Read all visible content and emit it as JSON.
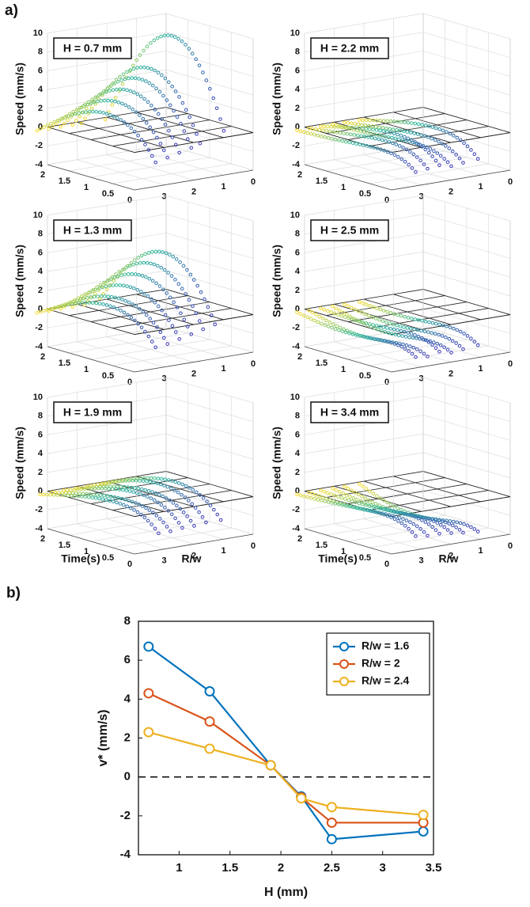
{
  "panel_a": {
    "label": "a)",
    "z_label": "Speed (mm/s)",
    "t_label": "Time(s)",
    "r_label": "R/w",
    "tlim": [
      0,
      2
    ],
    "rlim": [
      0,
      4
    ],
    "zlim": [
      -4,
      10
    ],
    "tticks": [
      2,
      1.5,
      1,
      0.5,
      0
    ],
    "rticks": [
      3,
      2,
      1,
      0
    ],
    "zticks": [
      10,
      8,
      6,
      4,
      2,
      0,
      -2,
      -4
    ],
    "colormap": [
      "#f7dc2a",
      "#2fb7a0",
      "#3a37b8"
    ],
    "plots": [
      {
        "title": "H = 0.7 mm",
        "traces": [
          {
            "end_r": 0.9,
            "peak": 10
          },
          {
            "end_r": 1.7,
            "peak": 7
          },
          {
            "end_r": 2.0,
            "peak": 6
          },
          {
            "end_r": 2.4,
            "peak": 5
          },
          {
            "end_r": 2.8,
            "peak": 4
          },
          {
            "end_r": 3.2,
            "peak": 3
          }
        ]
      },
      {
        "title": "H = 2.2 mm",
        "traces": [
          {
            "end_r": 1.0,
            "peak": 0.5
          },
          {
            "end_r": 1.5,
            "peak": 0
          },
          {
            "end_r": 1.9,
            "peak": -0.5
          },
          {
            "end_r": 2.3,
            "peak": 0.5
          },
          {
            "end_r": 2.7,
            "peak": 0
          },
          {
            "end_r": 3.1,
            "peak": -0.5
          }
        ]
      },
      {
        "title": "H = 1.3 mm",
        "traces": [
          {
            "end_r": 1.2,
            "peak": 6.5
          },
          {
            "end_r": 1.6,
            "peak": 5.5
          },
          {
            "end_r": 2.0,
            "peak": 4.5
          },
          {
            "end_r": 2.4,
            "peak": 3.5
          },
          {
            "end_r": 2.8,
            "peak": 2.5
          },
          {
            "end_r": 3.2,
            "peak": 2
          }
        ]
      },
      {
        "title": "H = 2.5 mm",
        "traces": [
          {
            "end_r": 1.0,
            "peak": -1
          },
          {
            "end_r": 1.5,
            "peak": -1.5
          },
          {
            "end_r": 1.9,
            "peak": -2
          },
          {
            "end_r": 2.3,
            "peak": -1
          },
          {
            "end_r": 2.7,
            "peak": -2
          },
          {
            "end_r": 3.1,
            "peak": -1.5
          }
        ]
      },
      {
        "title": "H = 1.9 mm",
        "traces": [
          {
            "end_r": 1.0,
            "peak": 1.5
          },
          {
            "end_r": 1.5,
            "peak": 1.5
          },
          {
            "end_r": 1.9,
            "peak": 1
          },
          {
            "end_r": 2.3,
            "peak": 1
          },
          {
            "end_r": 2.7,
            "peak": 0.5
          },
          {
            "end_r": 3.1,
            "peak": 0.5
          }
        ]
      },
      {
        "title": "H = 3.4 mm",
        "traces": [
          {
            "end_r": 1.0,
            "peak": -2.5
          },
          {
            "end_r": 1.5,
            "peak": -2
          },
          {
            "end_r": 1.9,
            "peak": -1.5
          },
          {
            "end_r": 2.3,
            "peak": -1
          },
          {
            "end_r": 2.7,
            "peak": -1
          },
          {
            "end_r": 3.1,
            "peak": -0.5
          }
        ]
      }
    ]
  },
  "chart_data": {
    "type": "line",
    "label": "b)",
    "x_label": "H (mm)",
    "y_label": "v* (mm/s)",
    "x": [
      0.7,
      1.3,
      1.9,
      2.2,
      2.5,
      3.4
    ],
    "series": [
      {
        "name": "R/w = 1.6",
        "color": "#0072bd",
        "values": [
          6.7,
          4.4,
          0.6,
          -1.0,
          -3.2,
          -2.8
        ]
      },
      {
        "name": "R/w = 2",
        "color": "#d95319",
        "values": [
          4.3,
          2.85,
          0.6,
          -1.05,
          -2.35,
          -2.35
        ]
      },
      {
        "name": "R/w = 2.4",
        "color": "#edb120",
        "values": [
          2.3,
          1.45,
          0.6,
          -1.1,
          -1.55,
          -1.95
        ]
      }
    ],
    "xlim": [
      0.6,
      3.5
    ],
    "ylim": [
      -4,
      8
    ],
    "xticks": [
      1,
      1.5,
      2,
      2.5,
      3,
      3.5
    ],
    "yticks": [
      -4,
      -2,
      0,
      2,
      4,
      6,
      8
    ],
    "zero_line": true,
    "legend": "upper-right"
  }
}
